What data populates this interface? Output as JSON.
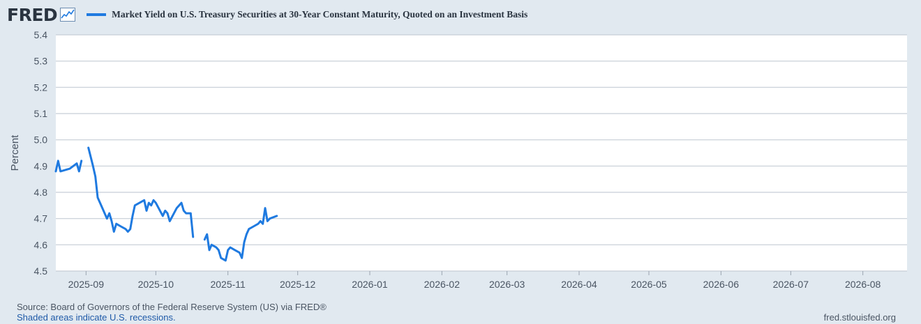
{
  "header": {
    "logo": "FRED",
    "logo_icon": "line-chart-icon",
    "legend_label": "Market Yield on U.S. Treasury Securities at 30-Year Constant Maturity, Quoted on an Investment Basis",
    "series_color": "#1f7ae0"
  },
  "footer": {
    "source": "Source: Board of Governors of the Federal Reserve System (US) via FRED®",
    "recessions": "Shaded areas indicate U.S. recessions.",
    "site": "fred.stlouisfed.org"
  },
  "chart_data": {
    "type": "line",
    "title": "",
    "xlabel": "",
    "ylabel": "Percent",
    "ylim": [
      4.5,
      5.4
    ],
    "xlim": [
      "2025-08-19",
      "2026-08-20"
    ],
    "yticks": [
      4.5,
      4.6,
      4.7,
      4.8,
      4.9,
      5.0,
      5.1,
      5.2,
      5.3,
      5.4
    ],
    "ytick_labels": [
      "4.5",
      "4.6",
      "4.7",
      "4.8",
      "4.9",
      "5.0",
      "5.1",
      "5.2",
      "5.3",
      "5.4"
    ],
    "xticks": [
      "2025-09-01",
      "2025-10-01",
      "2025-11-01",
      "2025-12-01",
      "2026-01-01",
      "2026-02-01",
      "2026-03-01",
      "2026-04-01",
      "2026-05-01",
      "2026-06-01",
      "2026-07-01",
      "2026-08-01"
    ],
    "xtick_labels": [
      "2025-09",
      "2025-10",
      "2025-11",
      "2025-12",
      "2026-01",
      "2026-02",
      "2026-03",
      "2026-04",
      "2026-05",
      "2026-06",
      "2026-07",
      "2026-08"
    ],
    "grid": true,
    "series": [
      {
        "name": "Market Yield on U.S. Treasury Securities at 30-Year Constant Maturity, Quoted on an Investment Basis",
        "segments": [
          [
            [
              "2025-08-19",
              4.88
            ],
            [
              "2025-08-20",
              4.92
            ],
            [
              "2025-08-21",
              4.88
            ],
            [
              "2025-08-25",
              4.89
            ],
            [
              "2025-08-28",
              4.91
            ],
            [
              "2025-08-29",
              4.88
            ],
            [
              "2025-08-30",
              4.92
            ]
          ],
          [
            [
              "2025-09-02",
              4.97
            ],
            [
              "2025-09-04",
              4.9
            ],
            [
              "2025-09-05",
              4.86
            ],
            [
              "2025-09-06",
              4.78
            ],
            [
              "2025-09-08",
              4.74
            ],
            [
              "2025-09-10",
              4.7
            ],
            [
              "2025-09-11",
              4.72
            ],
            [
              "2025-09-12",
              4.69
            ],
            [
              "2025-09-13",
              4.65
            ],
            [
              "2025-09-14",
              4.68
            ],
            [
              "2025-09-16",
              4.67
            ],
            [
              "2025-09-18",
              4.66
            ],
            [
              "2025-09-19",
              4.65
            ],
            [
              "2025-09-20",
              4.66
            ],
            [
              "2025-09-21",
              4.71
            ],
            [
              "2025-09-22",
              4.75
            ],
            [
              "2025-09-24",
              4.76
            ],
            [
              "2025-09-26",
              4.77
            ],
            [
              "2025-09-27",
              4.73
            ],
            [
              "2025-09-28",
              4.76
            ],
            [
              "2025-09-29",
              4.75
            ],
            [
              "2025-09-30",
              4.77
            ],
            [
              "2025-10-01",
              4.76
            ],
            [
              "2025-10-04",
              4.71
            ],
            [
              "2025-10-05",
              4.73
            ],
            [
              "2025-10-06",
              4.72
            ],
            [
              "2025-10-07",
              4.69
            ],
            [
              "2025-10-10",
              4.74
            ],
            [
              "2025-10-12",
              4.76
            ],
            [
              "2025-10-13",
              4.73
            ],
            [
              "2025-10-14",
              4.72
            ],
            [
              "2025-10-16",
              4.72
            ],
            [
              "2025-10-17",
              4.63
            ]
          ],
          [
            [
              "2025-10-22",
              4.62
            ],
            [
              "2025-10-23",
              4.64
            ],
            [
              "2025-10-24",
              4.58
            ],
            [
              "2025-10-25",
              4.6
            ],
            [
              "2025-10-27",
              4.59
            ],
            [
              "2025-10-28",
              4.58
            ],
            [
              "2025-10-29",
              4.55
            ],
            [
              "2025-10-31",
              4.54
            ],
            [
              "2025-11-01",
              4.58
            ],
            [
              "2025-11-02",
              4.59
            ],
            [
              "2025-11-04",
              4.58
            ],
            [
              "2025-11-06",
              4.57
            ],
            [
              "2025-11-07",
              4.55
            ],
            [
              "2025-11-08",
              4.61
            ],
            [
              "2025-11-09",
              4.64
            ],
            [
              "2025-11-10",
              4.66
            ],
            [
              "2025-11-12",
              4.67
            ],
            [
              "2025-11-14",
              4.68
            ],
            [
              "2025-11-15",
              4.69
            ],
            [
              "2025-11-16",
              4.68
            ],
            [
              "2025-11-17",
              4.74
            ],
            [
              "2025-11-18",
              4.69
            ],
            [
              "2025-11-19",
              4.7
            ],
            [
              "2025-11-22",
              4.71
            ]
          ]
        ]
      }
    ]
  }
}
